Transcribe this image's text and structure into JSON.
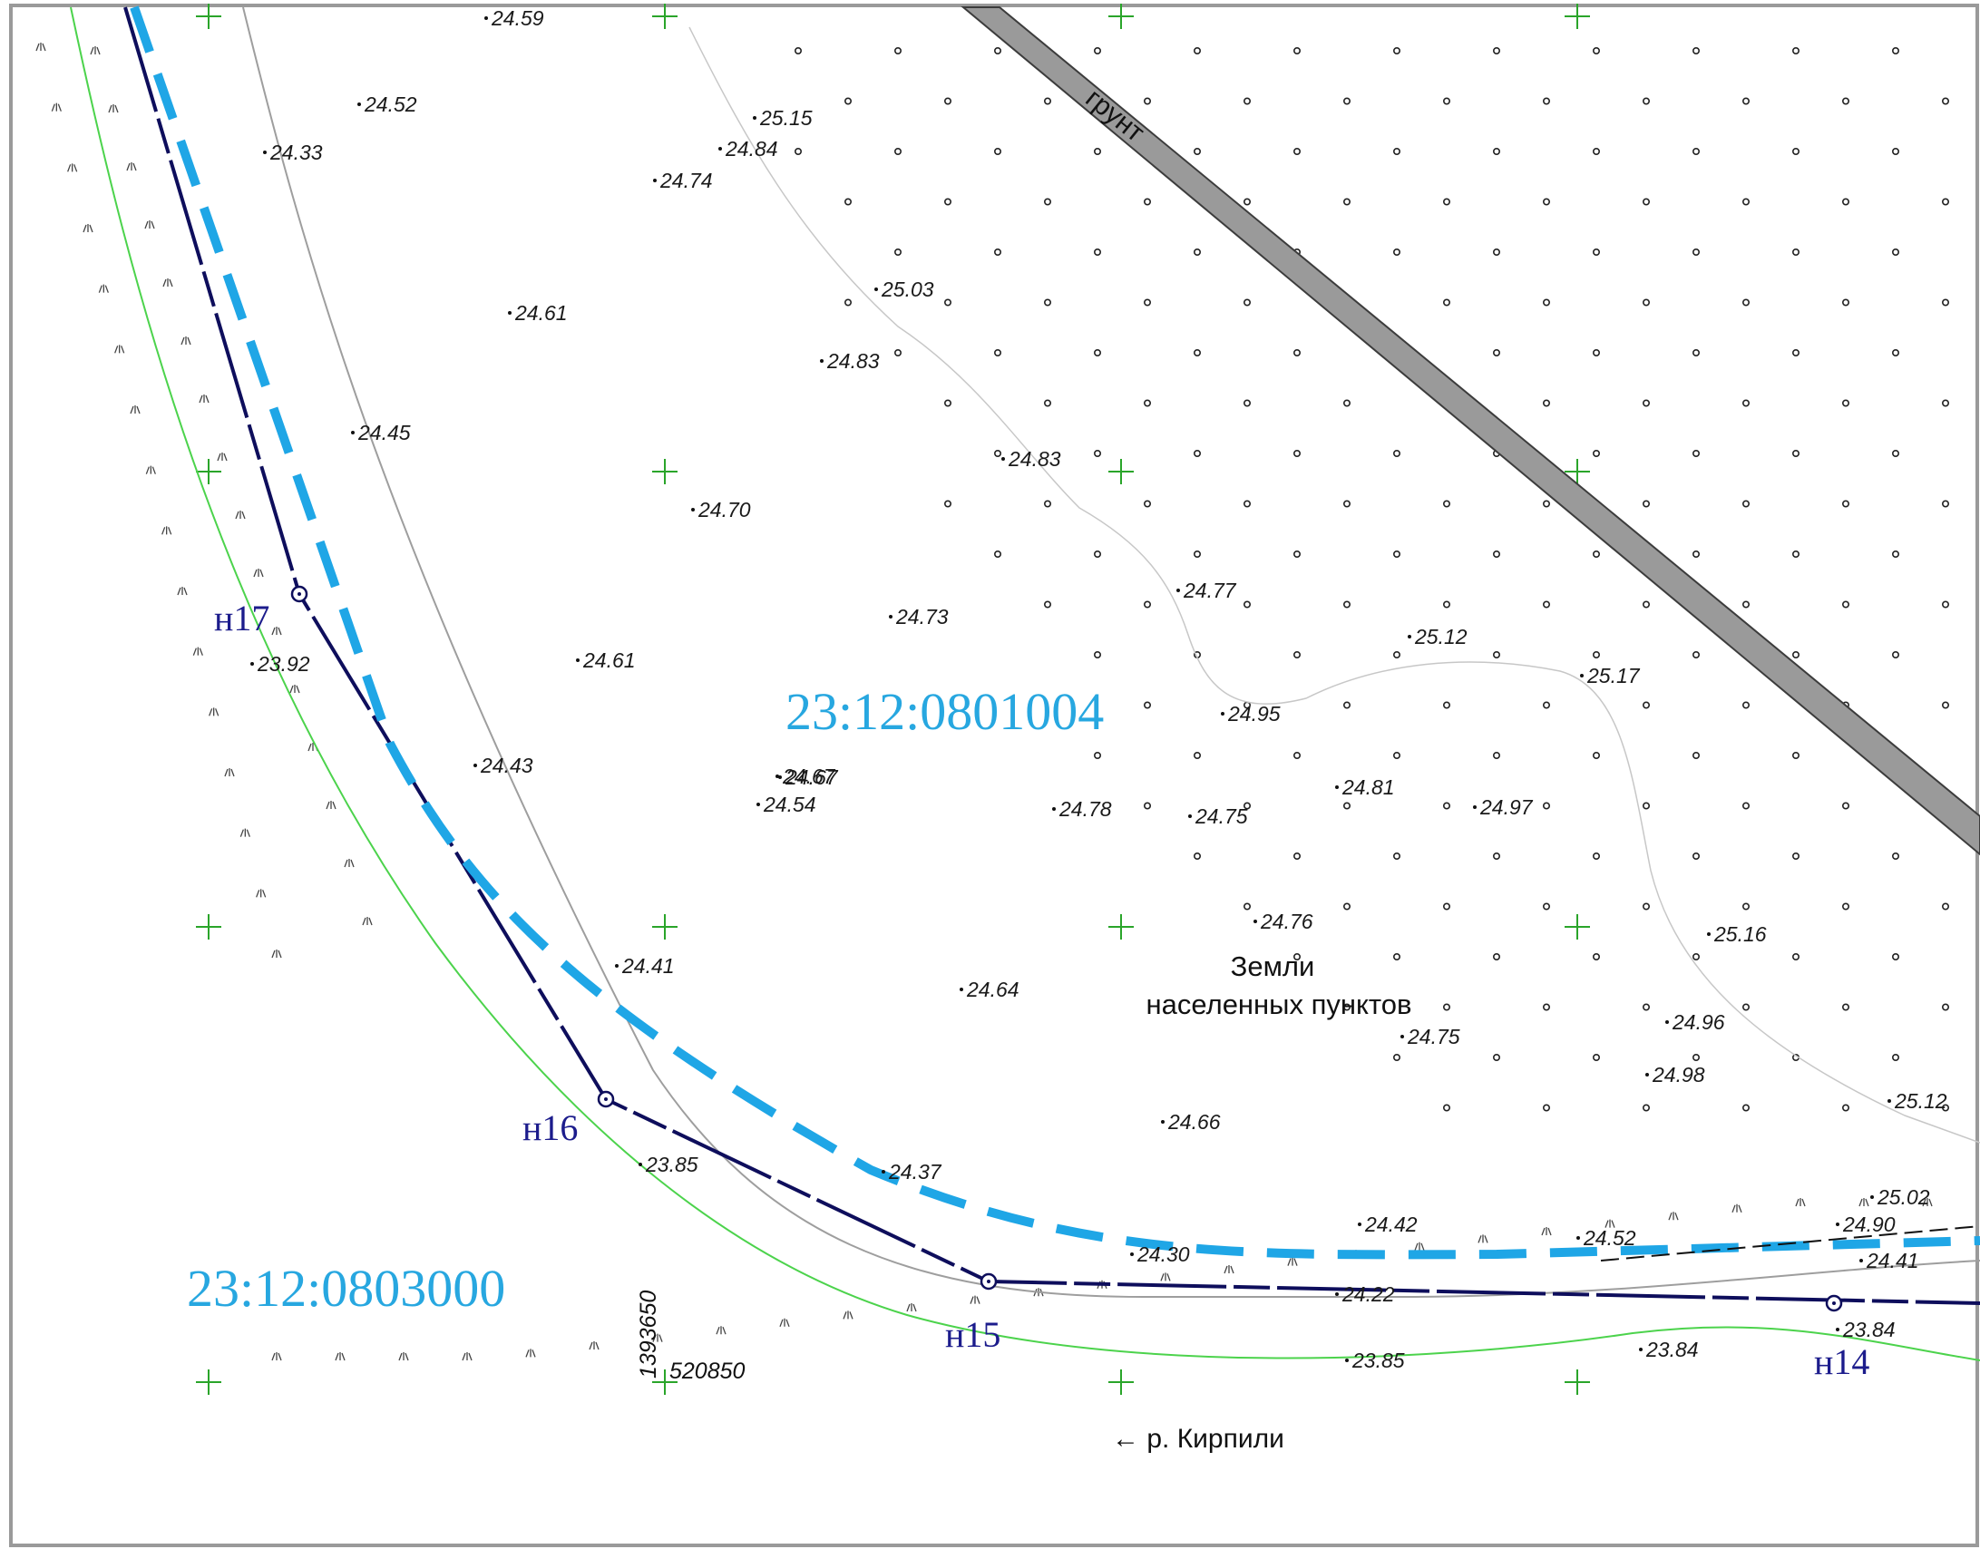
{
  "parcels": [
    {
      "id": "p-main",
      "text": "23:12:0801004"
    },
    {
      "id": "p-side",
      "text": "23:12:0803000"
    }
  ],
  "zone": {
    "line1": "Земли",
    "line2": "населенных пунктов"
  },
  "road": {
    "label": "грунт"
  },
  "river": {
    "label": "← р. Кирпили"
  },
  "coords": {
    "easting": "520850",
    "northing": "1393650"
  },
  "points": [
    {
      "id": "n14",
      "label": "н14"
    },
    {
      "id": "n15",
      "label": "н15"
    },
    {
      "id": "n16",
      "label": "н16"
    },
    {
      "id": "n17",
      "label": "н17"
    }
  ],
  "elevations": [
    "24.59",
    "24.52",
    "24.33",
    "25.15",
    "24.84",
    "24.74",
    "24.61",
    "25.03",
    "24.83",
    "24.45",
    "24.70",
    "24.83",
    "24.77",
    "24.73",
    "24.61",
    "23.92",
    "24.67",
    "25.12",
    "25.17",
    "24.95",
    "24.43",
    "24.67",
    "24.54",
    "24.78",
    "24.75",
    "24.81",
    "24.97",
    "24.76",
    "25.16",
    "24.41",
    "24.64",
    "24.75",
    "24.96",
    "24.98",
    "24.66",
    "25.12",
    "23.85",
    "24.37",
    "25.02",
    "24.42",
    "24.52",
    "24.90",
    "24.30",
    "24.41",
    "24.22",
    "23.84",
    "23.85",
    "23.84"
  ],
  "colors": {
    "parcel_boundary": "#1fa6e6",
    "survey_line": "#0e0e5c",
    "water_line": "#4cd34c",
    "grid_cross": "#2aa52a",
    "road_fill": "#9a9a9a"
  }
}
